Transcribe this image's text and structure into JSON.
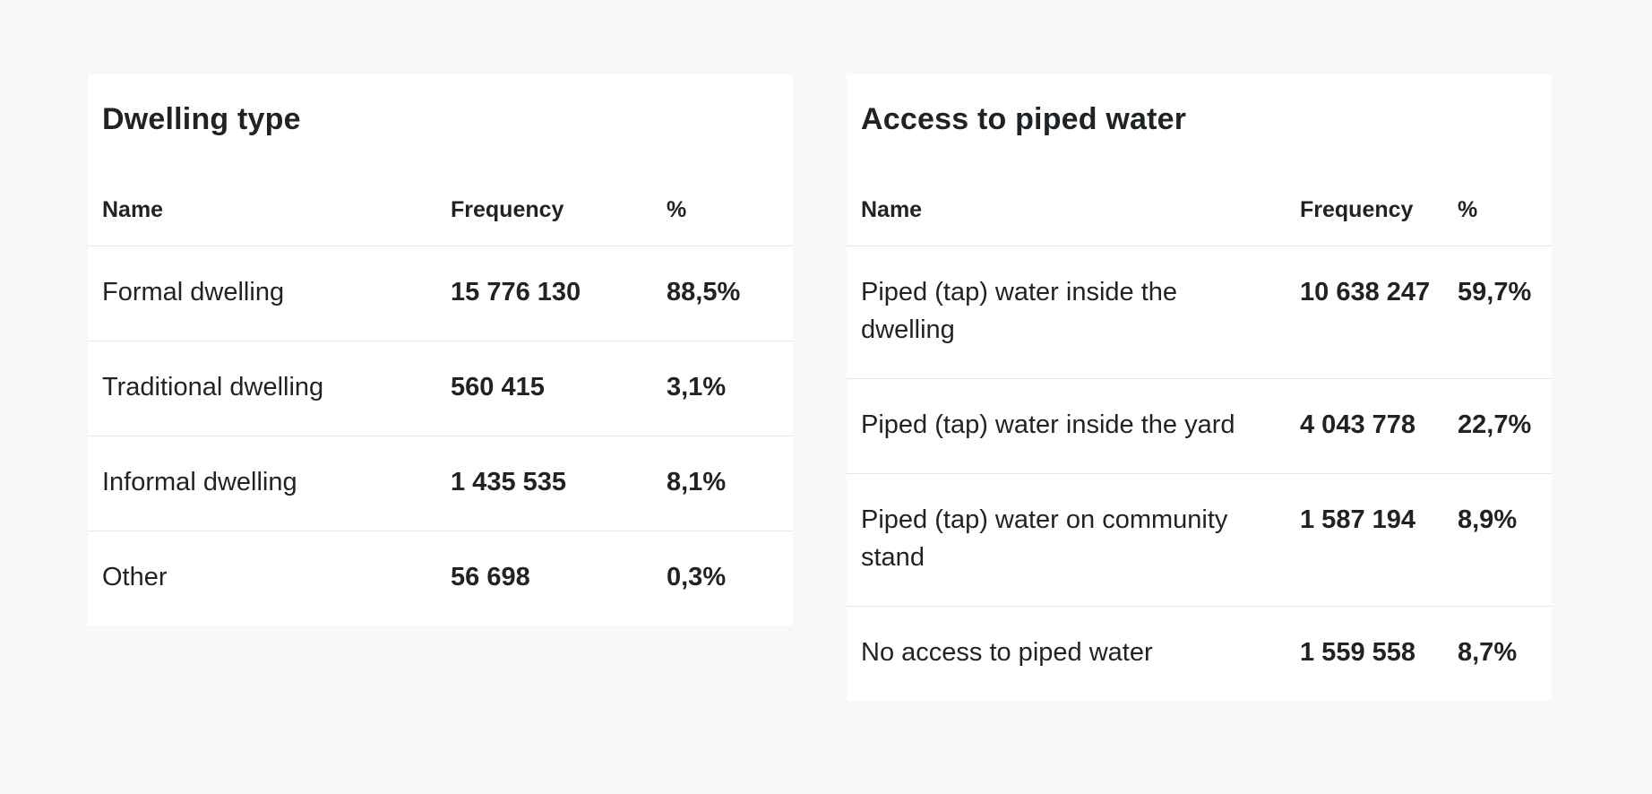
{
  "dwelling": {
    "title": "Dwelling type",
    "headers": {
      "name": "Name",
      "frequency": "Frequency",
      "percent": "%"
    },
    "rows": [
      {
        "name": "Formal dwelling",
        "frequency": "15 776 130",
        "percent": "88,5%"
      },
      {
        "name": "Traditional dwelling",
        "frequency": "560 415",
        "percent": "3,1%"
      },
      {
        "name": "Informal dwelling",
        "frequency": "1 435 535",
        "percent": "8,1%"
      },
      {
        "name": "Other",
        "frequency": "56 698",
        "percent": "0,3%"
      }
    ]
  },
  "water": {
    "title": "Access to piped water",
    "headers": {
      "name": "Name",
      "frequency": "Frequency",
      "percent": "%"
    },
    "rows": [
      {
        "name": "Piped (tap) water inside the dwelling",
        "frequency": "10 638 247",
        "percent": "59,7%"
      },
      {
        "name": "Piped (tap) water inside the yard",
        "frequency": "4 043 778",
        "percent": "22,7%"
      },
      {
        "name": "Piped (tap) water on community stand",
        "frequency": "1 587 194",
        "percent": "8,9%"
      },
      {
        "name": "No access to piped water",
        "frequency": "1 559 558",
        "percent": "8,7%"
      }
    ]
  }
}
